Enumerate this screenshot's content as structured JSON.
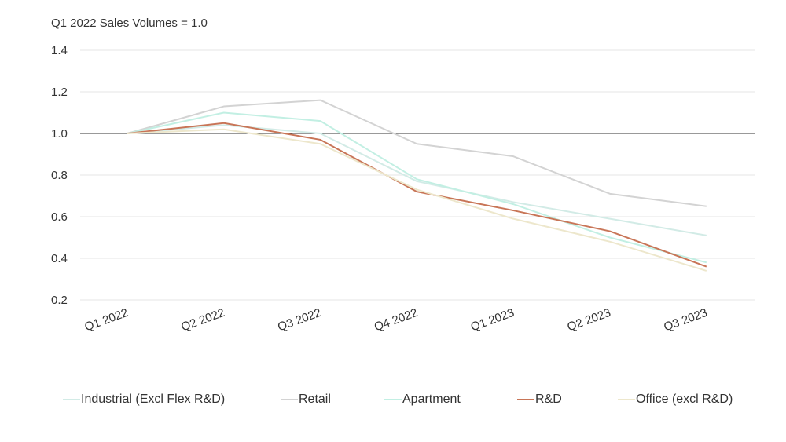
{
  "chart_data": {
    "type": "line",
    "subtitle": "Q1 2022 Sales Volumes = 1.0",
    "title": "",
    "xlabel": "",
    "ylabel": "",
    "categories": [
      "Q1 2022",
      "Q2 2022",
      "Q3 2022",
      "Q4 2022",
      "Q1 2023",
      "Q2 2023",
      "Q3 2023"
    ],
    "ylim": [
      0.2,
      1.4
    ],
    "yticks": [
      "1.4",
      "1.2",
      "1.0",
      "0.8",
      "0.6",
      "0.4",
      "0.2"
    ],
    "ytick_values": [
      1.4,
      1.2,
      1.0,
      0.8,
      0.6,
      0.4,
      0.2
    ],
    "reference_line": 1.0,
    "grid": true,
    "legend_position": "bottom",
    "series": [
      {
        "name": "Industrial (Excl Flex R&D)",
        "color": "#d2ebe6",
        "values": [
          1.0,
          1.04,
          1.0,
          0.77,
          0.67,
          0.59,
          0.51
        ]
      },
      {
        "name": "Retail",
        "color": "#d3d3d3",
        "values": [
          1.0,
          1.13,
          1.16,
          0.95,
          0.89,
          0.71,
          0.65
        ]
      },
      {
        "name": "Apartment",
        "color": "#c2efe3",
        "values": [
          1.0,
          1.1,
          1.06,
          0.78,
          0.66,
          0.5,
          0.38
        ]
      },
      {
        "name": "R&D",
        "color": "#c87557",
        "values": [
          1.0,
          1.05,
          0.97,
          0.72,
          0.63,
          0.53,
          0.36
        ]
      },
      {
        "name": "Office (excl R&D)",
        "color": "#ede7cc",
        "values": [
          1.0,
          1.02,
          0.95,
          0.73,
          0.59,
          0.48,
          0.34
        ]
      }
    ]
  }
}
